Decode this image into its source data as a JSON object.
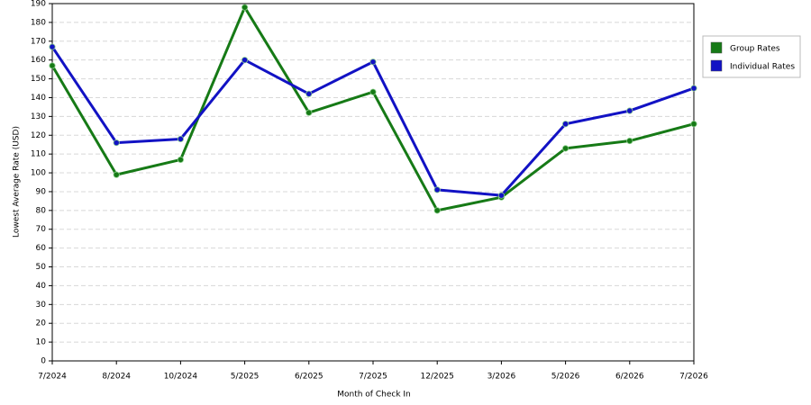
{
  "chart_data": {
    "type": "line",
    "x_label": "Month of Check In",
    "y_label": "Lowest Average Rate (USD)",
    "categories": [
      "7/2024",
      "8/2024",
      "10/2024",
      "5/2025",
      "6/2025",
      "7/2025",
      "12/2025",
      "3/2026",
      "5/2026",
      "6/2026",
      "7/2026"
    ],
    "series": [
      {
        "name": "Group Rates",
        "color": "#167a16",
        "values": [
          157,
          99,
          107,
          188,
          132,
          143,
          80,
          87,
          113,
          117,
          126
        ]
      },
      {
        "name": "Individual Rates",
        "color": "#1212c4",
        "values": [
          167,
          116,
          118,
          160,
          142,
          159,
          91,
          88,
          126,
          133,
          145
        ]
      }
    ],
    "ylim": [
      0,
      190
    ],
    "yticks": [
      0,
      10,
      20,
      30,
      40,
      50,
      60,
      70,
      80,
      90,
      100,
      110,
      120,
      130,
      140,
      150,
      160,
      170,
      180,
      190
    ],
    "grid": true,
    "legend": "right"
  }
}
